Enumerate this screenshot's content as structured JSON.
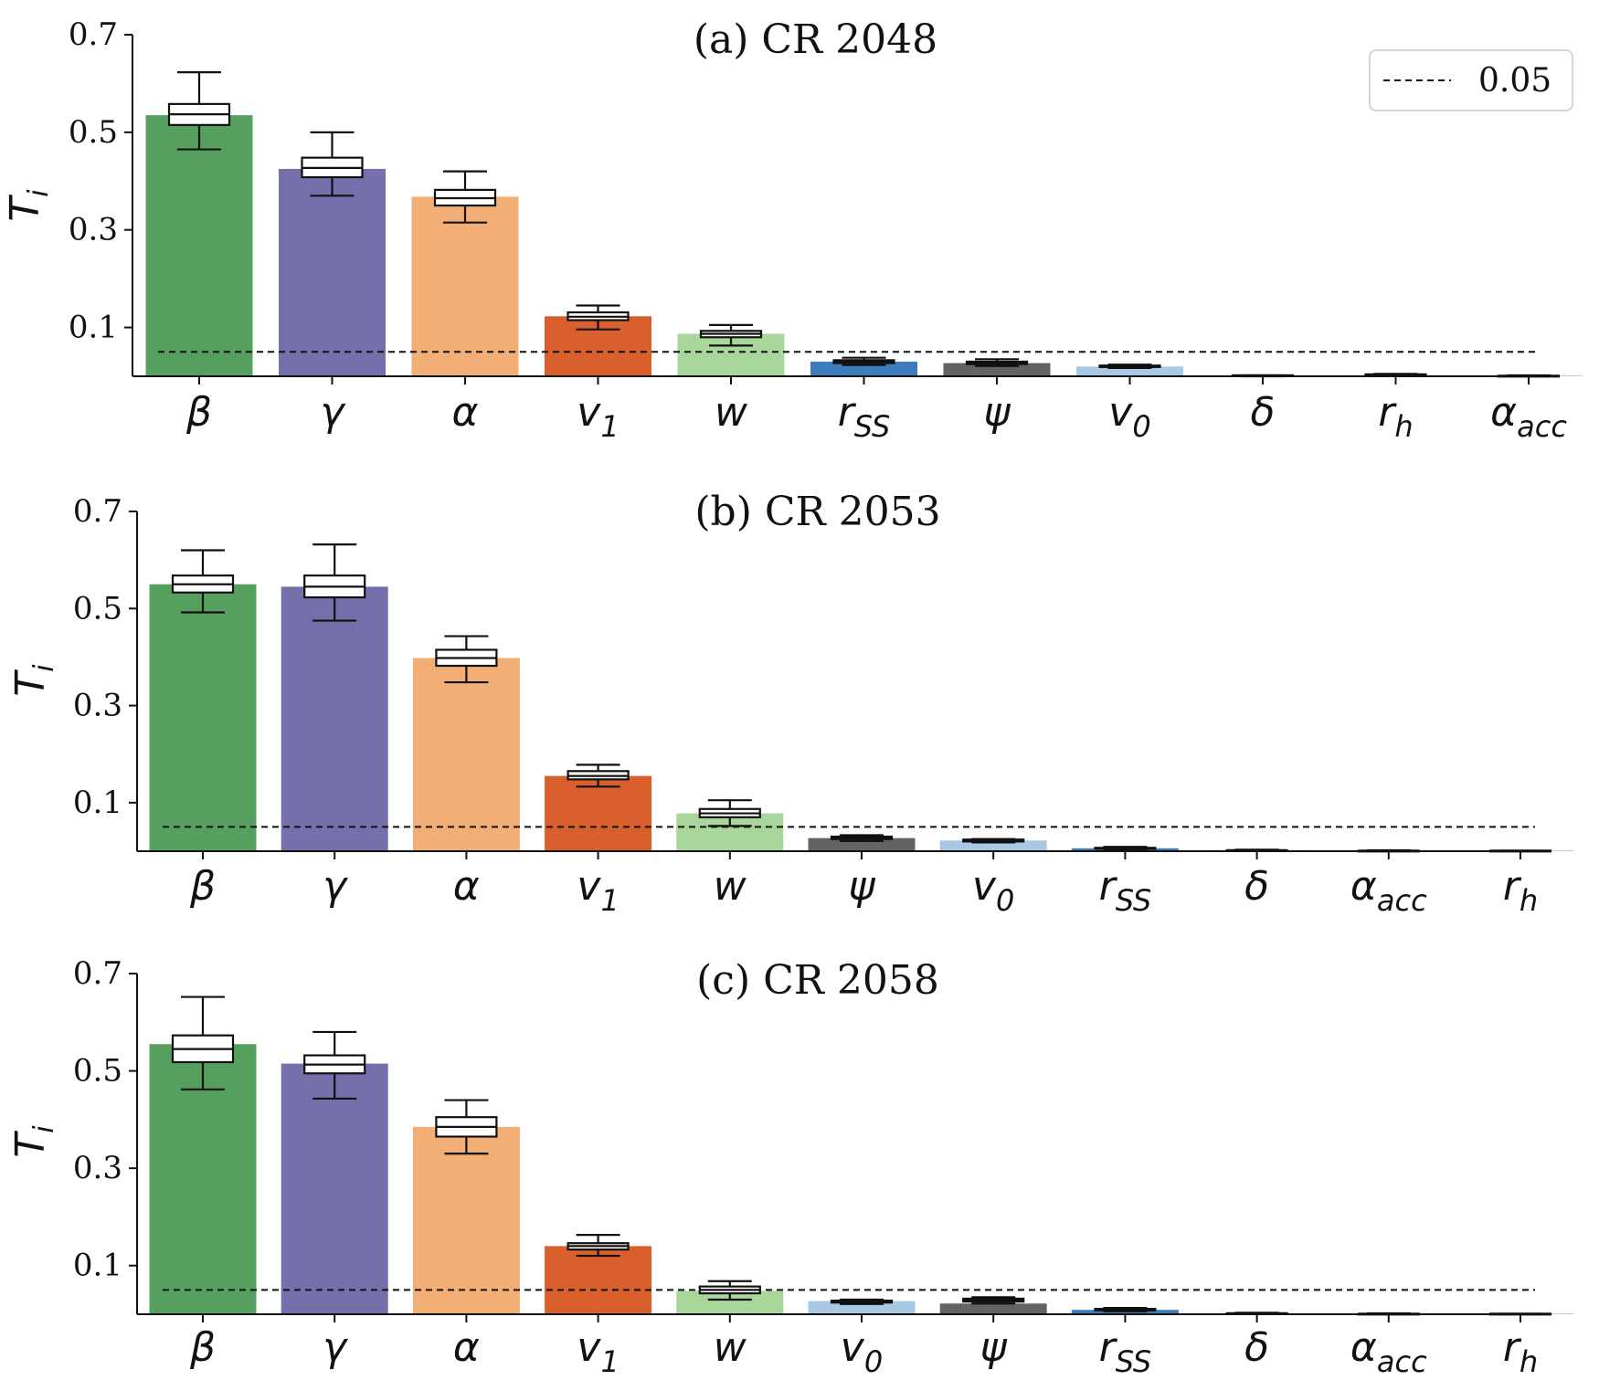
{
  "chart_data": [
    {
      "type": "bar",
      "title": "(a) CR 2048",
      "ylabel": "T",
      "ylabel_sub": "i",
      "ylim": [
        0,
        0.7
      ],
      "yticks": [
        "0.1",
        "0.3",
        "0.5",
        "0.7"
      ],
      "categories": [
        {
          "base": "β",
          "sub": ""
        },
        {
          "base": "γ",
          "sub": ""
        },
        {
          "base": "α",
          "sub": ""
        },
        {
          "base": "v",
          "sub": "1"
        },
        {
          "base": "w",
          "sub": ""
        },
        {
          "base": "r",
          "sub": "SS"
        },
        {
          "base": "ψ",
          "sub": ""
        },
        {
          "base": "v",
          "sub": "0"
        },
        {
          "base": "δ",
          "sub": ""
        },
        {
          "base": "r",
          "sub": "h"
        },
        {
          "base": "α",
          "sub": "acc"
        }
      ],
      "values": [
        0.535,
        0.425,
        0.368,
        0.123,
        0.087,
        0.03,
        0.027,
        0.02,
        0.001,
        0.002,
        0.001
      ],
      "colors": [
        "#55a05e",
        "#7570ab",
        "#f2ae74",
        "#d95f2c",
        "#a9d79b",
        "#3d7dbd",
        "#636363",
        "#a8c8e3",
        "#9a9a9a",
        "#9a9a9a",
        "#9a9a9a"
      ],
      "boxes": [
        {
          "min": 0.465,
          "q1": 0.515,
          "median": 0.537,
          "q3": 0.558,
          "max": 0.623
        },
        {
          "min": 0.37,
          "q1": 0.408,
          "median": 0.427,
          "q3": 0.448,
          "max": 0.5
        },
        {
          "min": 0.315,
          "q1": 0.35,
          "median": 0.365,
          "q3": 0.382,
          "max": 0.42
        },
        {
          "min": 0.096,
          "q1": 0.115,
          "median": 0.122,
          "q3": 0.131,
          "max": 0.145
        },
        {
          "min": 0.063,
          "q1": 0.08,
          "median": 0.087,
          "q3": 0.093,
          "max": 0.105
        },
        {
          "min": 0.023,
          "q1": 0.027,
          "median": 0.03,
          "q3": 0.033,
          "max": 0.038
        },
        {
          "min": 0.021,
          "q1": 0.025,
          "median": 0.027,
          "q3": 0.03,
          "max": 0.035
        },
        {
          "min": 0.017,
          "q1": 0.019,
          "median": 0.02,
          "q3": 0.022,
          "max": 0.024
        },
        {
          "min": 0.0,
          "q1": 0.001,
          "median": 0.001,
          "q3": 0.002,
          "max": 0.002
        },
        {
          "min": 0.001,
          "q1": 0.002,
          "median": 0.003,
          "q3": 0.004,
          "max": 0.005
        },
        {
          "min": 0.0,
          "q1": 0.0,
          "median": 0.001,
          "q3": 0.001,
          "max": 0.002
        }
      ],
      "threshold": 0.05,
      "legend": {
        "label": "0.05",
        "placement": "top-right"
      }
    },
    {
      "type": "bar",
      "title": "(b) CR 2053",
      "ylabel": "T",
      "ylabel_sub": "i",
      "ylim": [
        0,
        0.7
      ],
      "yticks": [
        "0.1",
        "0.3",
        "0.5",
        "0.7"
      ],
      "categories": [
        {
          "base": "β",
          "sub": ""
        },
        {
          "base": "γ",
          "sub": ""
        },
        {
          "base": "α",
          "sub": ""
        },
        {
          "base": "v",
          "sub": "1"
        },
        {
          "base": "w",
          "sub": ""
        },
        {
          "base": "ψ",
          "sub": ""
        },
        {
          "base": "v",
          "sub": "0"
        },
        {
          "base": "r",
          "sub": "SS"
        },
        {
          "base": "δ",
          "sub": ""
        },
        {
          "base": "α",
          "sub": "acc"
        },
        {
          "base": "r",
          "sub": "h"
        }
      ],
      "values": [
        0.55,
        0.545,
        0.398,
        0.155,
        0.078,
        0.027,
        0.022,
        0.006,
        0.002,
        0.001,
        0.001
      ],
      "colors": [
        "#55a05e",
        "#7570ab",
        "#f2ae74",
        "#d95f2c",
        "#a9d79b",
        "#636363",
        "#a8c8e3",
        "#3d7dbd",
        "#9a9a9a",
        "#9a9a9a",
        "#9a9a9a"
      ],
      "boxes": [
        {
          "min": 0.492,
          "q1": 0.533,
          "median": 0.55,
          "q3": 0.568,
          "max": 0.62
        },
        {
          "min": 0.475,
          "q1": 0.523,
          "median": 0.545,
          "q3": 0.568,
          "max": 0.632
        },
        {
          "min": 0.348,
          "q1": 0.382,
          "median": 0.398,
          "q3": 0.415,
          "max": 0.443
        },
        {
          "min": 0.133,
          "q1": 0.148,
          "median": 0.155,
          "q3": 0.165,
          "max": 0.178
        },
        {
          "min": 0.052,
          "q1": 0.07,
          "median": 0.078,
          "q3": 0.087,
          "max": 0.105
        },
        {
          "min": 0.021,
          "q1": 0.025,
          "median": 0.027,
          "q3": 0.03,
          "max": 0.033
        },
        {
          "min": 0.018,
          "q1": 0.02,
          "median": 0.022,
          "q3": 0.024,
          "max": 0.025
        },
        {
          "min": 0.003,
          "q1": 0.005,
          "median": 0.006,
          "q3": 0.007,
          "max": 0.009
        },
        {
          "min": 0.001,
          "q1": 0.001,
          "median": 0.002,
          "q3": 0.002,
          "max": 0.003
        },
        {
          "min": 0.0,
          "q1": 0.001,
          "median": 0.001,
          "q3": 0.001,
          "max": 0.002
        },
        {
          "min": 0.0,
          "q1": 0.0,
          "median": 0.001,
          "q3": 0.001,
          "max": 0.001
        }
      ],
      "threshold": 0.05
    },
    {
      "type": "bar",
      "title": "(c) CR 2058",
      "ylabel": "T",
      "ylabel_sub": "i",
      "ylim": [
        0,
        0.7
      ],
      "yticks": [
        "0.1",
        "0.3",
        "0.5",
        "0.7"
      ],
      "categories": [
        {
          "base": "β",
          "sub": ""
        },
        {
          "base": "γ",
          "sub": ""
        },
        {
          "base": "α",
          "sub": ""
        },
        {
          "base": "v",
          "sub": "1"
        },
        {
          "base": "w",
          "sub": ""
        },
        {
          "base": "v",
          "sub": "0"
        },
        {
          "base": "ψ",
          "sub": ""
        },
        {
          "base": "r",
          "sub": "SS"
        },
        {
          "base": "δ",
          "sub": ""
        },
        {
          "base": "α",
          "sub": "acc"
        },
        {
          "base": "r",
          "sub": "h"
        }
      ],
      "values": [
        0.555,
        0.515,
        0.385,
        0.14,
        0.048,
        0.027,
        0.022,
        0.009,
        0.002,
        0.001,
        0.001
      ],
      "colors": [
        "#55a05e",
        "#7570ab",
        "#f2ae74",
        "#d95f2c",
        "#a9d79b",
        "#a8c8e3",
        "#636363",
        "#3d7dbd",
        "#9a9a9a",
        "#9a9a9a",
        "#9a9a9a"
      ],
      "boxes": [
        {
          "min": 0.462,
          "q1": 0.518,
          "median": 0.545,
          "q3": 0.573,
          "max": 0.652
        },
        {
          "min": 0.443,
          "q1": 0.495,
          "median": 0.513,
          "q3": 0.532,
          "max": 0.58
        },
        {
          "min": 0.33,
          "q1": 0.365,
          "median": 0.385,
          "q3": 0.405,
          "max": 0.44
        },
        {
          "min": 0.12,
          "q1": 0.133,
          "median": 0.14,
          "q3": 0.146,
          "max": 0.163
        },
        {
          "min": 0.03,
          "q1": 0.043,
          "median": 0.05,
          "q3": 0.057,
          "max": 0.068
        },
        {
          "min": 0.021,
          "q1": 0.024,
          "median": 0.026,
          "q3": 0.028,
          "max": 0.03
        },
        {
          "min": 0.022,
          "q1": 0.026,
          "median": 0.029,
          "q3": 0.032,
          "max": 0.035
        },
        {
          "min": 0.006,
          "q1": 0.008,
          "median": 0.009,
          "q3": 0.011,
          "max": 0.013
        },
        {
          "min": 0.001,
          "q1": 0.001,
          "median": 0.002,
          "q3": 0.002,
          "max": 0.003
        },
        {
          "min": 0.0,
          "q1": 0.001,
          "median": 0.001,
          "q3": 0.001,
          "max": 0.002
        },
        {
          "min": 0.0,
          "q1": 0.0,
          "median": 0.001,
          "q3": 0.001,
          "max": 0.001
        }
      ],
      "threshold": 0.05
    }
  ]
}
